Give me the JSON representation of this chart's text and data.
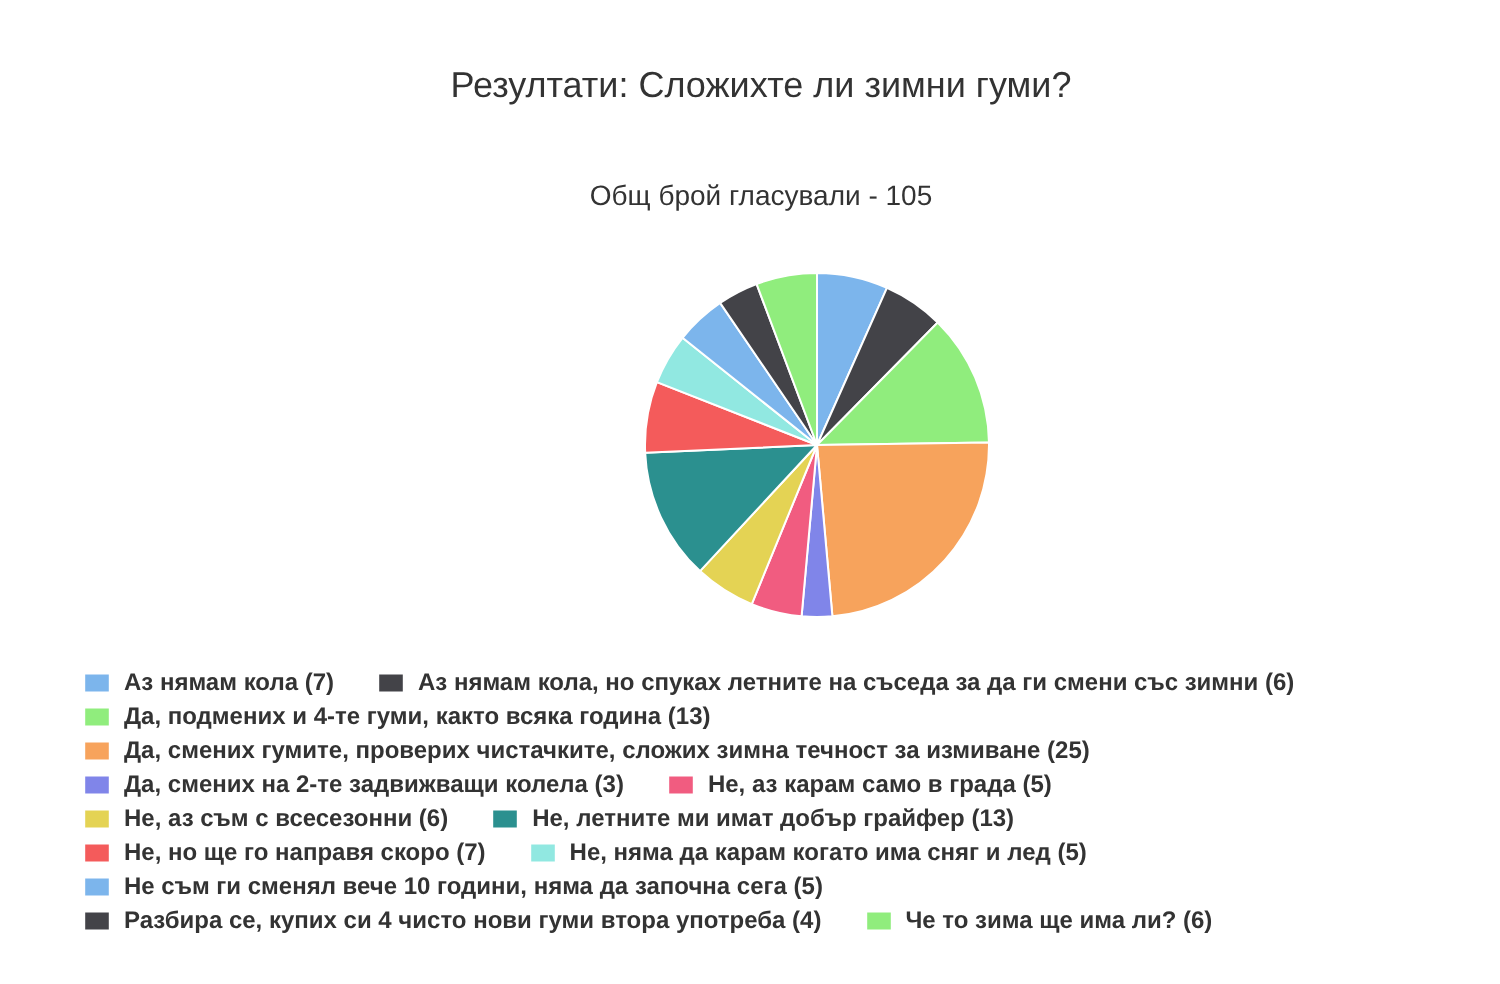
{
  "chart_data": {
    "type": "pie",
    "title": "Резултати: Сложихте ли зимни гуми?",
    "subtitle": "Общ брой гласували - 105",
    "categories": [
      "Аз нямам кола (7)",
      "Аз нямам кола, но спуках летните на съседа за да ги смени със зимни (6)",
      "Да, подмених и 4-те гуми, както всяка година (13)",
      "Да, смених гумите, проверих чистачките, сложих зимна течност за измиване (25)",
      "Да, смених на 2-те задвижващи колела (3)",
      "Не, аз карам само в града (5)",
      "Не, аз съм с всесезонни (6)",
      "Не, летните ми имат добър грайфер (13)",
      "Не, но ще го направя скоро (7)",
      "Не, няма да карам когато има сняг и лед (5)",
      "Не съм ги сменял вече 10 години, няма да започна сега (5)",
      "Разбира се, купих си 4 чисто нови гуми втора употреба (4)",
      "Че то зима ще има ли? (6)"
    ],
    "values": [
      7,
      6,
      13,
      25,
      3,
      5,
      6,
      13,
      7,
      5,
      5,
      4,
      6
    ],
    "colors": [
      "#7cb5ec",
      "#434348",
      "#90ed7d",
      "#f7a35c",
      "#8085e9",
      "#f15c80",
      "#e4d354",
      "#2b908f",
      "#f45b5b",
      "#91e8e1",
      "#7cb5ec",
      "#434348",
      "#90ed7d"
    ],
    "legend": "bottom"
  }
}
